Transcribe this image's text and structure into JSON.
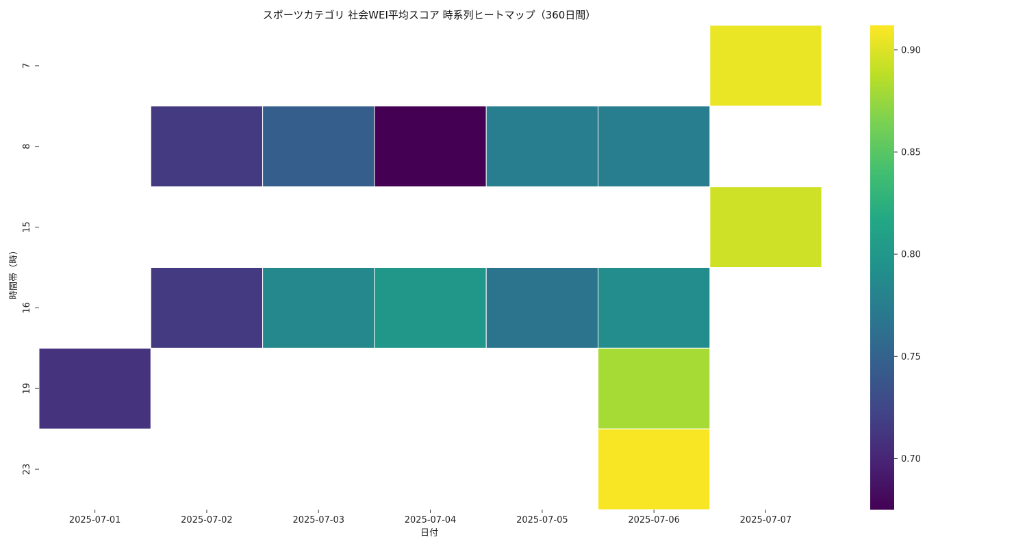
{
  "chart_data": {
    "type": "heatmap",
    "title": "スポーツカテゴリ 社会WEI平均スコア 時系列ヒートマップ（360日間）",
    "xlabel": "日付",
    "ylabel": "時間帯（時）",
    "x_categories": [
      "2025-07-01",
      "2025-07-02",
      "2025-07-03",
      "2025-07-04",
      "2025-07-05",
      "2025-07-06",
      "2025-07-07"
    ],
    "y_categories": [
      "7",
      "8",
      "15",
      "16",
      "19",
      "23"
    ],
    "values": [
      [
        null,
        null,
        null,
        null,
        null,
        null,
        0.905
      ],
      [
        null,
        0.715,
        0.745,
        0.675,
        0.775,
        0.775,
        null
      ],
      [
        null,
        null,
        null,
        null,
        null,
        null,
        0.895
      ],
      [
        null,
        0.715,
        0.785,
        0.8,
        0.765,
        0.79,
        null
      ],
      [
        0.71,
        null,
        null,
        null,
        null,
        0.88,
        null
      ],
      [
        null,
        null,
        null,
        null,
        null,
        0.91,
        null
      ]
    ],
    "colormap": "viridis",
    "colorbar": {
      "min": 0.675,
      "max": 0.912,
      "ticks": [
        "0.70",
        "0.75",
        "0.80",
        "0.85",
        "0.90"
      ]
    }
  }
}
